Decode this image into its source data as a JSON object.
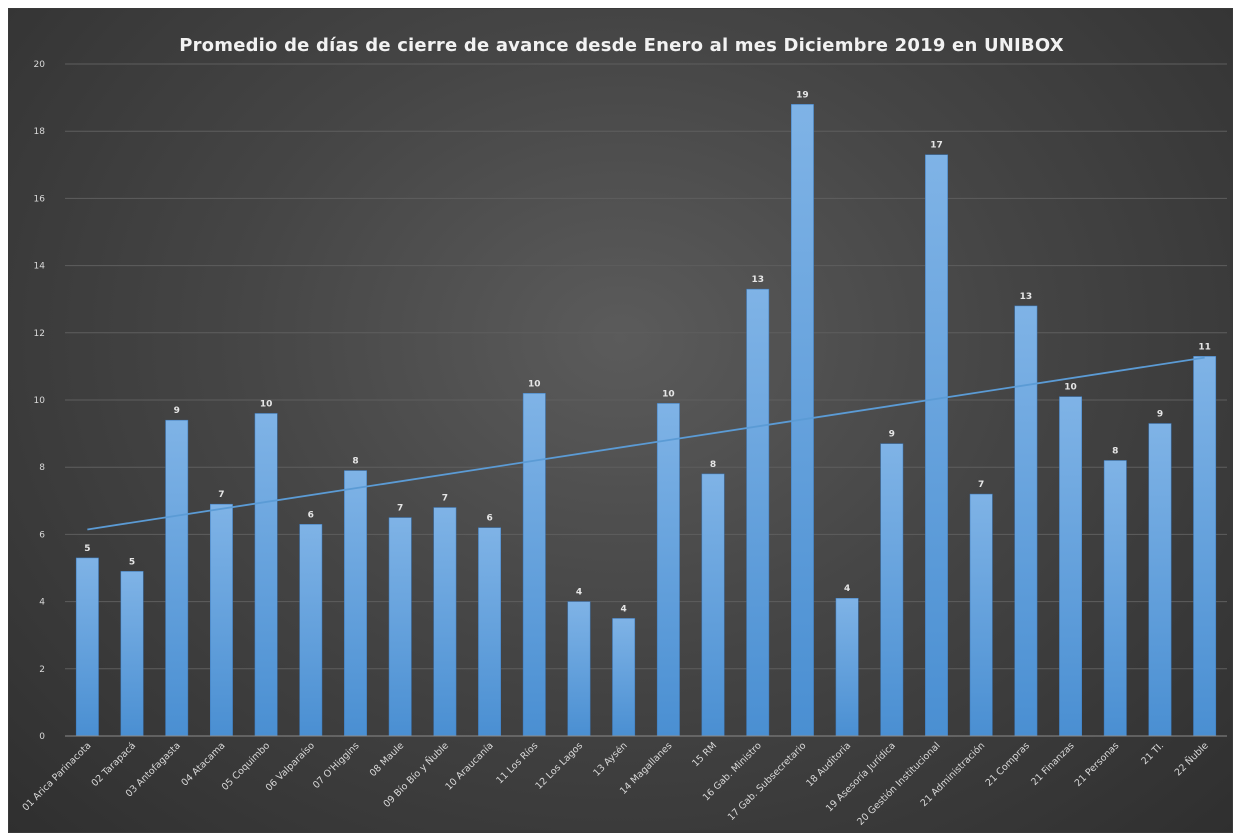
{
  "chart_data": {
    "type": "bar",
    "title": "Promedio de días de cierre de avance desde Enero al mes Diciembre 2019 en UNIBOX",
    "xlabel": "",
    "ylabel": "",
    "ylim": [
      0,
      20
    ],
    "yticks": [
      0,
      2,
      4,
      6,
      8,
      10,
      12,
      14,
      16,
      18,
      20
    ],
    "grid": true,
    "trendline": "linear",
    "colors": {
      "bar": "#5b9bd5",
      "bar_top": "#7eb4e6",
      "trend": "#5b9bd5",
      "background": "#404040"
    },
    "categories": [
      "01 Arica Parinacota",
      "02 Tarapacá",
      "03 Antofagasta",
      "04 Atacama",
      "05 Coquimbo",
      "06 Valparaíso",
      "07 O'Higgins",
      "08 Maule",
      "09 Bío Bío y Ñuble",
      "10 Araucanía",
      "11 Los Ríos",
      "12 Los Lagos",
      "13 Aysén",
      "14 Magallanes",
      "15 RM",
      "16 Gab. Ministro",
      "17 Gab. Subsecretario",
      "18 Auditoria",
      "19 Asesoría Jurídica",
      "20 Gestión Institucional",
      "21 Administración",
      "21 Compras",
      "21 Finanzas",
      "21 Personas",
      "21 TI.",
      "22 Ñuble"
    ],
    "values": [
      5.3,
      4.9,
      9.4,
      6.9,
      9.6,
      6.3,
      7.9,
      6.5,
      6.8,
      6.2,
      10.2,
      4.0,
      3.5,
      9.9,
      7.8,
      13.3,
      18.8,
      4.1,
      8.7,
      17.3,
      7.2,
      12.8,
      10.1,
      8.2,
      9.3,
      11.3
    ],
    "data_labels": [
      "5",
      "5",
      "9",
      "7",
      "10",
      "6",
      "8",
      "7",
      "7",
      "6",
      "10",
      "4",
      "4",
      "10",
      "8",
      "13",
      "19",
      "4",
      "9",
      "17",
      "7",
      "13",
      "10",
      "8",
      "9",
      "11"
    ]
  }
}
